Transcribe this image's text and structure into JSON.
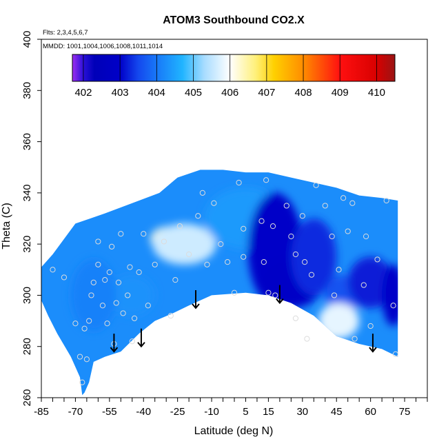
{
  "chart_data": {
    "type": "heatmap",
    "title": "ATOM3 Southbound CO2.X",
    "flights_note": "Flts: 2,3,4,5,6,7",
    "dates_note": "MMDD: 1001,1004,1006,1008,1011,1014",
    "xlabel": "Latitude (deg N)",
    "ylabel": "Theta (C)",
    "xlim": [
      -85,
      85
    ],
    "ylim": [
      260,
      400
    ],
    "x_tick_labels": [
      "-85",
      "-70",
      "-55",
      "-40",
      "-25",
      "-10",
      "5",
      "15",
      "30",
      "45",
      "60",
      "75"
    ],
    "x_tick_values": [
      -85,
      -70,
      -55,
      -40,
      -25,
      -10,
      5,
      15,
      30,
      45,
      60,
      75
    ],
    "x_minor_tick_step": 5,
    "y_tick_labels": [
      "260",
      "280",
      "300",
      "320",
      "340",
      "360",
      "380",
      "400"
    ],
    "y_tick_values": [
      260,
      280,
      300,
      320,
      340,
      360,
      380,
      400
    ],
    "colorbar": {
      "labels": [
        "402",
        "403",
        "404",
        "405",
        "406",
        "407",
        "408",
        "409",
        "410"
      ],
      "values": [
        402,
        403,
        404,
        405,
        406,
        407,
        408,
        409,
        410
      ],
      "min": 401.7,
      "max": 410.5,
      "stops": [
        {
          "v": 401.7,
          "c": "#9d2ff0"
        },
        {
          "v": 402.0,
          "c": "#2a10d8"
        },
        {
          "v": 402.3,
          "c": "#0000b8"
        },
        {
          "v": 403.0,
          "c": "#0000c8"
        },
        {
          "v": 403.5,
          "c": "#1448ee"
        },
        {
          "v": 404.0,
          "c": "#1878f8"
        },
        {
          "v": 404.7,
          "c": "#20b4ff"
        },
        {
          "v": 405.3,
          "c": "#a8dcff"
        },
        {
          "v": 406.0,
          "c": "#ffffff"
        },
        {
          "v": 406.7,
          "c": "#fff07a"
        },
        {
          "v": 407.2,
          "c": "#ffd000"
        },
        {
          "v": 408.0,
          "c": "#ff8c00"
        },
        {
          "v": 409.0,
          "c": "#ff1010"
        },
        {
          "v": 410.0,
          "c": "#d80000"
        },
        {
          "v": 410.5,
          "c": "#9a1414"
        }
      ]
    },
    "upper_boundary": [
      [
        -88,
        308
      ],
      [
        -80,
        316
      ],
      [
        -70,
        328
      ],
      [
        -57,
        332
      ],
      [
        -45,
        336
      ],
      [
        -33,
        340
      ],
      [
        -25,
        346
      ],
      [
        -15,
        349
      ],
      [
        -5,
        349
      ],
      [
        5,
        348
      ],
      [
        15,
        348
      ],
      [
        25,
        346
      ],
      [
        35,
        344
      ],
      [
        45,
        342
      ],
      [
        55,
        339
      ],
      [
        65,
        338
      ],
      [
        72,
        337
      ]
    ],
    "lower_boundary": [
      [
        72,
        276
      ],
      [
        65,
        279
      ],
      [
        55,
        281
      ],
      [
        45,
        284
      ],
      [
        35,
        292
      ],
      [
        25,
        297
      ],
      [
        15,
        300
      ],
      [
        5,
        301
      ],
      [
        -10,
        300
      ],
      [
        -20,
        296
      ],
      [
        -27,
        293
      ],
      [
        -35,
        290
      ],
      [
        -42,
        285
      ],
      [
        -50,
        278
      ],
      [
        -57,
        276
      ],
      [
        -62,
        274
      ],
      [
        -64,
        266
      ],
      [
        -66,
        262
      ],
      [
        -67,
        261
      ],
      [
        -68,
        268
      ],
      [
        -72,
        276
      ],
      [
        -78,
        285
      ],
      [
        -82,
        292
      ],
      [
        -85,
        298
      ],
      [
        -88,
        303
      ]
    ],
    "field_anomalies": [
      {
        "lat": -28,
        "theta": 322,
        "value": 406.2,
        "rx": 9,
        "ry": 5
      },
      {
        "lat": -22,
        "theta": 320,
        "value": 405.6,
        "rx": 14,
        "ry": 8
      },
      {
        "lat": 5,
        "theta": 330,
        "value": 404.4,
        "rx": 18,
        "ry": 12
      },
      {
        "lat": 18,
        "theta": 318,
        "value": 403.0,
        "rx": 12,
        "ry": 22
      },
      {
        "lat": 25,
        "theta": 305,
        "value": 402.9,
        "rx": 14,
        "ry": 10
      },
      {
        "lat": 35,
        "theta": 315,
        "value": 403.3,
        "rx": 10,
        "ry": 15
      },
      {
        "lat": 48,
        "theta": 300,
        "value": 403.6,
        "rx": 8,
        "ry": 8
      },
      {
        "lat": 43,
        "theta": 287,
        "value": 407.3,
        "rx": 4,
        "ry": 4
      },
      {
        "lat": 46,
        "theta": 290,
        "value": 405.8,
        "rx": 9,
        "ry": 7
      },
      {
        "lat": 60,
        "theta": 305,
        "value": 403.2,
        "rx": 10,
        "ry": 10
      },
      {
        "lat": 70,
        "theta": 300,
        "value": 403.0,
        "rx": 5,
        "ry": 12
      },
      {
        "lat": -45,
        "theta": 300,
        "value": 404.3,
        "rx": 10,
        "ry": 8
      },
      {
        "lat": -62,
        "theta": 300,
        "value": 404.1,
        "rx": 10,
        "ry": 14
      }
    ],
    "arrows": [
      {
        "lat": -53,
        "theta_top": 285,
        "theta_bottom": 278
      },
      {
        "lat": -41,
        "theta_top": 287,
        "theta_bottom": 280
      },
      {
        "lat": -17,
        "theta_top": 302,
        "theta_bottom": 295
      },
      {
        "lat": 20,
        "theta_top": 304,
        "theta_bottom": 297
      },
      {
        "lat": 61,
        "theta_top": 285,
        "theta_bottom": 278
      }
    ],
    "sample_points": [
      {
        "lat": -80,
        "theta": 310
      },
      {
        "lat": -75,
        "theta": 307
      },
      {
        "lat": -70,
        "theta": 289
      },
      {
        "lat": -68,
        "theta": 276
      },
      {
        "lat": -67,
        "theta": 266
      },
      {
        "lat": -66,
        "theta": 287
      },
      {
        "lat": -65,
        "theta": 275
      },
      {
        "lat": -64,
        "theta": 290
      },
      {
        "lat": -63,
        "theta": 300
      },
      {
        "lat": -62,
        "theta": 305
      },
      {
        "lat": -60,
        "theta": 312
      },
      {
        "lat": -60,
        "theta": 321
      },
      {
        "lat": -58,
        "theta": 296
      },
      {
        "lat": -57,
        "theta": 306
      },
      {
        "lat": -56,
        "theta": 289
      },
      {
        "lat": -55,
        "theta": 309
      },
      {
        "lat": -54,
        "theta": 319
      },
      {
        "lat": -53,
        "theta": 281
      },
      {
        "lat": -52,
        "theta": 297
      },
      {
        "lat": -51,
        "theta": 305
      },
      {
        "lat": -50,
        "theta": 324
      },
      {
        "lat": -49,
        "theta": 293
      },
      {
        "lat": -47,
        "theta": 300
      },
      {
        "lat": -46,
        "theta": 311
      },
      {
        "lat": -45,
        "theta": 282
      },
      {
        "lat": -44,
        "theta": 291
      },
      {
        "lat": -42,
        "theta": 309
      },
      {
        "lat": -40,
        "theta": 324
      },
      {
        "lat": -38,
        "theta": 296
      },
      {
        "lat": -35,
        "theta": 312
      },
      {
        "lat": -31,
        "theta": 321
      },
      {
        "lat": -28,
        "theta": 292
      },
      {
        "lat": -26,
        "theta": 306
      },
      {
        "lat": -24,
        "theta": 327
      },
      {
        "lat": -20,
        "theta": 316
      },
      {
        "lat": -16,
        "theta": 331
      },
      {
        "lat": -14,
        "theta": 340
      },
      {
        "lat": -12,
        "theta": 312
      },
      {
        "lat": -9,
        "theta": 336
      },
      {
        "lat": -6,
        "theta": 320
      },
      {
        "lat": -3,
        "theta": 313
      },
      {
        "lat": 0,
        "theta": 301
      },
      {
        "lat": 2,
        "theta": 344
      },
      {
        "lat": 4,
        "theta": 326
      },
      {
        "lat": 4,
        "theta": 315
      },
      {
        "lat": 12,
        "theta": 329
      },
      {
        "lat": 13,
        "theta": 313
      },
      {
        "lat": 14,
        "theta": 345
      },
      {
        "lat": 15,
        "theta": 301
      },
      {
        "lat": 17,
        "theta": 327
      },
      {
        "lat": 18,
        "theta": 300
      },
      {
        "lat": 23,
        "theta": 335
      },
      {
        "lat": 25,
        "theta": 323
      },
      {
        "lat": 27,
        "theta": 316
      },
      {
        "lat": 27,
        "theta": 291
      },
      {
        "lat": 30,
        "theta": 331
      },
      {
        "lat": 31,
        "theta": 313
      },
      {
        "lat": 32,
        "theta": 283
      },
      {
        "lat": 34,
        "theta": 308
      },
      {
        "lat": 36,
        "theta": 343
      },
      {
        "lat": 40,
        "theta": 335
      },
      {
        "lat": 43,
        "theta": 323
      },
      {
        "lat": 44,
        "theta": 300
      },
      {
        "lat": 46,
        "theta": 310
      },
      {
        "lat": 48,
        "theta": 338
      },
      {
        "lat": 50,
        "theta": 325
      },
      {
        "lat": 52,
        "theta": 336
      },
      {
        "lat": 53,
        "theta": 283
      },
      {
        "lat": 57,
        "theta": 304
      },
      {
        "lat": 58,
        "theta": 323
      },
      {
        "lat": 60,
        "theta": 288
      },
      {
        "lat": 63,
        "theta": 314
      },
      {
        "lat": 67,
        "theta": 337
      },
      {
        "lat": 70,
        "theta": 296
      },
      {
        "lat": 71,
        "theta": 277
      }
    ]
  }
}
